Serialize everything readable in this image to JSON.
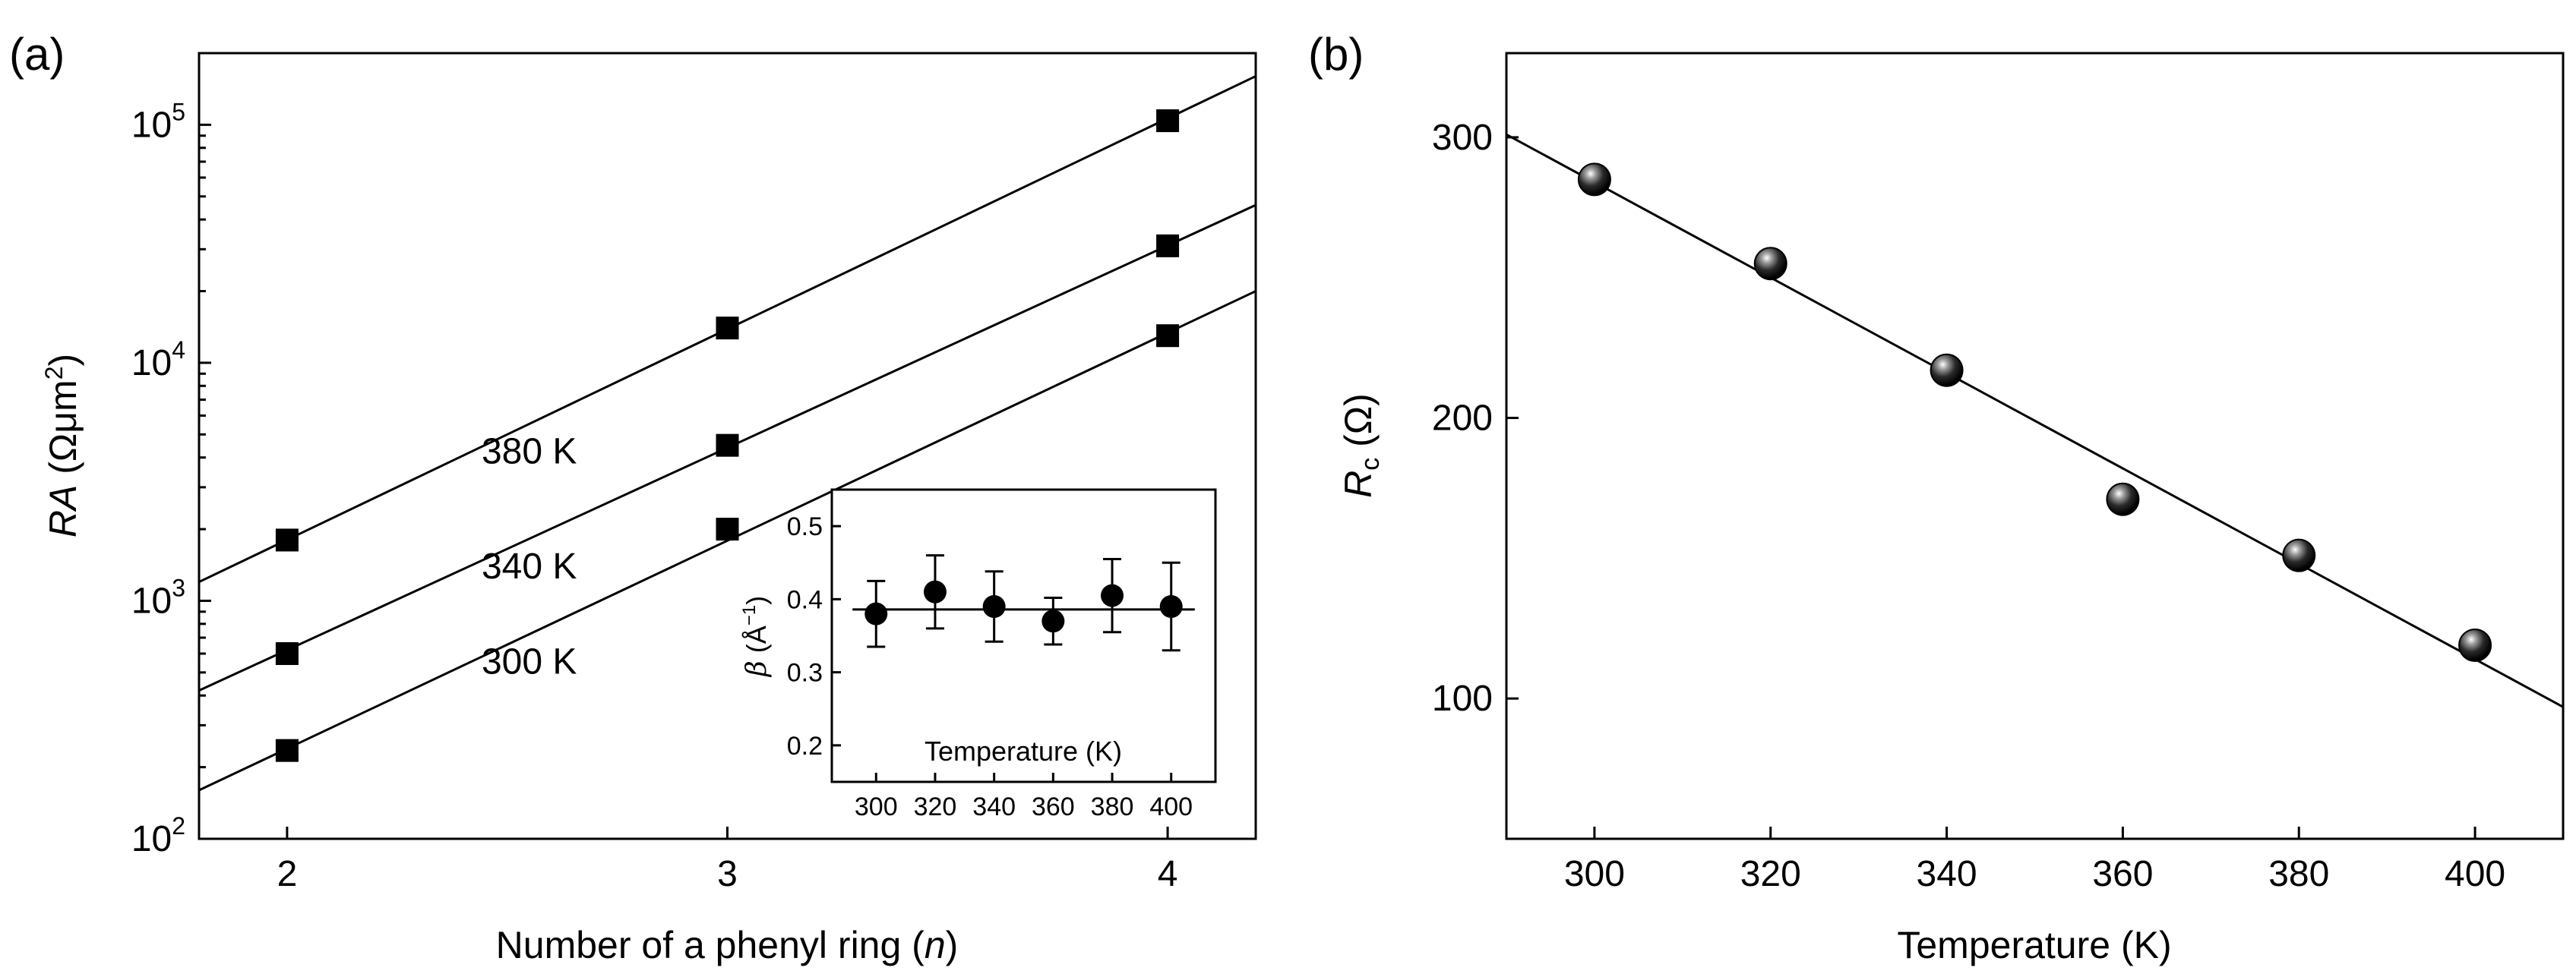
{
  "chart_data": [
    {
      "id": "a",
      "type": "scatter",
      "panel_label": "(a)",
      "y_scale": "log",
      "xlabel": {
        "main": "Number  of a phenyl ring (",
        "var": "n",
        "tail": ")"
      },
      "ylabel": {
        "var": "RA",
        "units": " (Ωμm",
        "sup": "2",
        "close": ")"
      },
      "xlim": [
        1.8,
        4.2
      ],
      "ylim": [
        100,
        200000
      ],
      "x_ticks": [
        2,
        3,
        4
      ],
      "x_tick_labels": [
        "2",
        "3",
        "4"
      ],
      "y_ticks": [
        100,
        1000,
        10000,
        100000
      ],
      "y_tick_base": "10",
      "y_tick_exps": [
        "2",
        "3",
        "4",
        "5"
      ],
      "series": [
        {
          "name": "380 K",
          "x": [
            2,
            3,
            4
          ],
          "values": [
            1800,
            14000,
            104000
          ],
          "fit": [
            1.8,
            1200,
            4.2,
            160000
          ],
          "label_x": 2.55
        },
        {
          "name": "340 K",
          "x": [
            2,
            3,
            4
          ],
          "values": [
            600,
            4500,
            31000
          ],
          "fit": [
            1.8,
            420,
            4.2,
            46000
          ],
          "label_x": 2.55
        },
        {
          "name": "300 K",
          "x": [
            2,
            3,
            4
          ],
          "values": [
            235,
            2000,
            13000
          ],
          "fit": [
            1.8,
            160,
            4.2,
            20000
          ],
          "label_x": 2.55
        }
      ],
      "inset": {
        "type": "scatter",
        "xlabel": "Temperature  (K)",
        "ylabel": {
          "var": "β",
          "units": " (Å",
          "sup": "−1",
          "close": ")"
        },
        "xlim": [
          285,
          415
        ],
        "ylim": [
          0.15,
          0.55
        ],
        "x_ticks": [
          300,
          320,
          340,
          360,
          380,
          400
        ],
        "x_tick_labels": [
          "300",
          "320",
          "340",
          "360",
          "380",
          "400"
        ],
        "y_ticks": [
          0.2,
          0.3,
          0.4,
          0.5
        ],
        "y_tick_labels": [
          "0.2",
          "0.3",
          "0.4",
          "0.5"
        ],
        "x": [
          300,
          320,
          340,
          360,
          380,
          400
        ],
        "values": [
          0.38,
          0.41,
          0.39,
          0.37,
          0.405,
          0.39
        ],
        "errors": [
          0.045,
          0.05,
          0.048,
          0.032,
          0.05,
          0.06
        ],
        "fit_value": 0.386
      }
    },
    {
      "id": "b",
      "type": "scatter",
      "panel_label": "(b)",
      "xlabel": "Temperature  (K)",
      "ylabel": {
        "var": "R",
        "sub": "c",
        "units": " (Ω)"
      },
      "xlim": [
        290,
        410
      ],
      "ylim": [
        50,
        330
      ],
      "x_ticks": [
        300,
        320,
        340,
        360,
        380,
        400
      ],
      "x_tick_labels": [
        "300",
        "320",
        "340",
        "360",
        "380",
        "400"
      ],
      "y_ticks": [
        100,
        200,
        300
      ],
      "y_tick_labels": [
        "100",
        "200",
        "300"
      ],
      "x": [
        300,
        320,
        340,
        360,
        380,
        400
      ],
      "values": [
        285,
        255,
        217,
        171,
        151,
        119
      ],
      "fit": [
        290,
        301,
        410,
        97
      ]
    }
  ]
}
